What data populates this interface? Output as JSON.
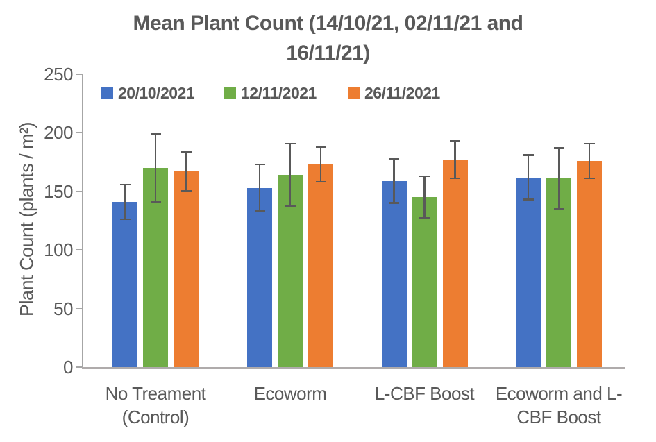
{
  "title": {
    "line1": "Mean Plant Count (14/10/21, 02/11/21 and",
    "line2": "16/11/21)",
    "full": "Mean Plant Count (14/10/21, 02/11/21 and 16/11/21)"
  },
  "chart_data": {
    "type": "bar",
    "title": "Mean Plant Count (14/10/21, 02/11/21 and 16/11/21)",
    "xlabel": "",
    "ylabel": "Plant Count (plants / m²)",
    "ylim": [
      0,
      250
    ],
    "yticks": [
      0,
      50,
      100,
      150,
      200,
      250
    ],
    "grid": false,
    "legend_position": "top-inside",
    "categories": [
      "No Treament (Control)",
      "Ecoworm",
      "L-CBF Boost",
      "Ecoworm and L-CBF Boost"
    ],
    "category_label_lines": [
      [
        "No Treament",
        "(Control)"
      ],
      [
        "Ecoworm"
      ],
      [
        "L-CBF Boost"
      ],
      [
        "Ecoworm and L-",
        "CBF Boost"
      ]
    ],
    "series": [
      {
        "name": "20/10/2021",
        "color": "#4472C4",
        "values": [
          141,
          153,
          159,
          162
        ],
        "errors": [
          15,
          20,
          19,
          19
        ]
      },
      {
        "name": "12/11/2021",
        "color": "#70AD47",
        "values": [
          170,
          164,
          145,
          161
        ],
        "errors": [
          29,
          27,
          18,
          26
        ]
      },
      {
        "name": "26/11/2021",
        "color": "#ED7D31",
        "values": [
          167,
          173,
          177,
          176
        ],
        "errors": [
          17,
          15,
          16,
          15
        ]
      }
    ],
    "error_bar_color": "#595959",
    "axis_color": "#A6A6A6",
    "text_color": "#595959"
  }
}
